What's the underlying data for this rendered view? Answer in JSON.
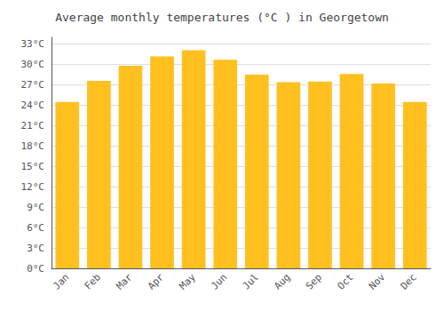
{
  "chart_data": {
    "type": "bar",
    "title": "Average monthly temperatures (°C ) in Georgetown",
    "categories": [
      "Jan",
      "Feb",
      "Mar",
      "Apr",
      "May",
      "Jun",
      "Jul",
      "Aug",
      "Sep",
      "Oct",
      "Nov",
      "Dec"
    ],
    "values": [
      24.5,
      27.6,
      29.8,
      31.2,
      32.1,
      30.7,
      28.5,
      27.4,
      27.5,
      28.6,
      27.2,
      24.5
    ],
    "color": "#FFC020",
    "ylim": [
      0,
      34
    ],
    "yticks": [
      {
        "value": 0,
        "label": "0°C"
      },
      {
        "value": 3,
        "label": "3°C"
      },
      {
        "value": 6,
        "label": "6°C"
      },
      {
        "value": 9,
        "label": "9°C"
      },
      {
        "value": 12,
        "label": "12°C"
      },
      {
        "value": 15,
        "label": "15°C"
      },
      {
        "value": 18,
        "label": "18°C"
      },
      {
        "value": 21,
        "label": "21°C"
      },
      {
        "value": 24,
        "label": "24°C"
      },
      {
        "value": 27,
        "label": "27°C"
      },
      {
        "value": 30,
        "label": "30°C"
      },
      {
        "value": 33,
        "label": "33°C"
      }
    ],
    "grid": true
  }
}
